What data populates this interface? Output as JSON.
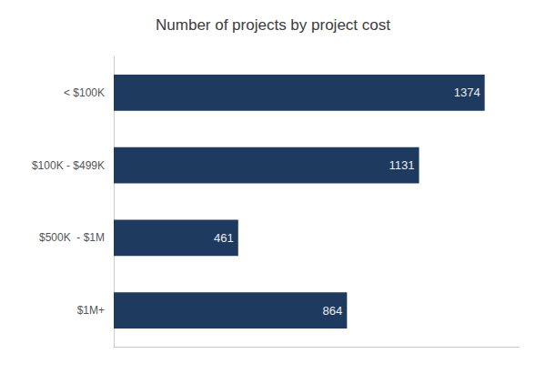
{
  "chart_data": {
    "type": "bar",
    "title": "Number of projects by project cost",
    "categories": [
      "$1M+",
      "$500K  - $1M",
      "$100K - $499K",
      "< $100K"
    ],
    "values": [
      864,
      461,
      1131,
      1374
    ],
    "color": "#1e3a5f",
    "orientation": "horizontal",
    "xlim": [
      0,
      1500
    ],
    "grid": false,
    "data_labels": true,
    "tick_labels": "y"
  }
}
